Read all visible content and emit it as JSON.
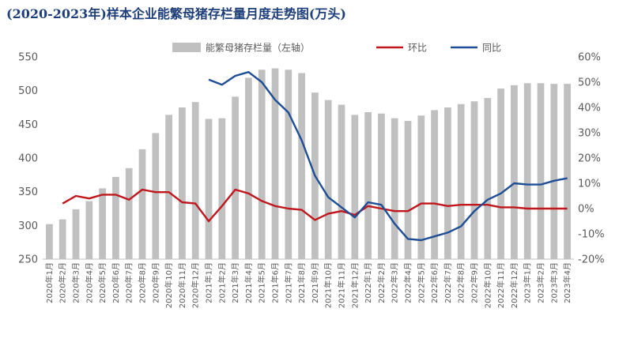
{
  "chart_data": {
    "type": "bar",
    "title": "(2020-2023年)样本企业能繁母猪存栏量月度走势图(万头)",
    "categories": [
      "2020年1月",
      "2020年2月",
      "2020年3月",
      "2020年4月",
      "2020年5月",
      "2020年6月",
      "2020年7月",
      "2020年8月",
      "2020年9月",
      "2020年10月",
      "2020年11月",
      "2020年12月",
      "2021年1月",
      "2021年2月",
      "2021年3月",
      "2021年4月",
      "2021年5月",
      "2021年6月",
      "2021年7月",
      "2021年8月",
      "2021年9月",
      "2021年10月",
      "2021年11月",
      "2021年12月",
      "2022年1月",
      "2022年2月",
      "2022年3月",
      "2022年4月",
      "2022年5月",
      "2022年6月",
      "2022年7月",
      "2022年8月",
      "2022年9月",
      "2022年10月",
      "2022年11月",
      "2022年12月",
      "2023年1月",
      "2023年2月",
      "2023年3月",
      "2023年4月"
    ],
    "series": [
      {
        "name": "能繁母猪存栏量（左轴）",
        "type": "bar",
        "axis": "left",
        "color": "#c0c0c0",
        "values": [
          302,
          309,
          324,
          336,
          355,
          372,
          385,
          413,
          437,
          464,
          475,
          483,
          458,
          459,
          491,
          519,
          531,
          533,
          531,
          526,
          497,
          486,
          479,
          464,
          468,
          466,
          459,
          455,
          463,
          471,
          475,
          480,
          484,
          489,
          503,
          508,
          511,
          511,
          510,
          510
        ]
      },
      {
        "name": "环比",
        "type": "line",
        "axis": "right",
        "color": "#c0171c",
        "values": [
          null,
          2,
          5,
          4,
          5.5,
          5.5,
          3.5,
          7.5,
          6.5,
          6.5,
          2.5,
          2,
          -5,
          1,
          7.5,
          6,
          3,
          1,
          0,
          -0.5,
          -4.5,
          -2,
          -1,
          -2.5,
          1,
          0,
          -1,
          -1,
          2,
          2,
          1,
          1.5,
          1.5,
          1.5,
          0.5,
          0.5,
          0,
          0,
          0,
          0
        ]
      },
      {
        "name": "同比",
        "type": "line",
        "axis": "right",
        "color": "#1f4e96",
        "values": [
          null,
          null,
          null,
          null,
          null,
          null,
          null,
          null,
          null,
          null,
          null,
          null,
          51,
          49,
          52.5,
          54,
          50,
          43,
          38,
          27,
          13,
          4.5,
          0.5,
          -3.5,
          2.5,
          1.5,
          -6,
          -12,
          -12.5,
          -11,
          -9.5,
          -7,
          -1,
          3.5,
          6,
          10,
          9.5,
          9.5,
          11,
          12
        ]
      }
    ],
    "y_left": {
      "min": 250,
      "max": 550,
      "step": 50,
      "ticks": [
        "250",
        "300",
        "350",
        "400",
        "450",
        "500",
        "550"
      ]
    },
    "y_right": {
      "min": -20,
      "max": 60,
      "step": 10,
      "ticks": [
        "-20%",
        "-10%",
        "0%",
        "10%",
        "20%",
        "30%",
        "40%",
        "50%",
        "60%"
      ]
    },
    "legend_position": "top",
    "grid": false
  }
}
